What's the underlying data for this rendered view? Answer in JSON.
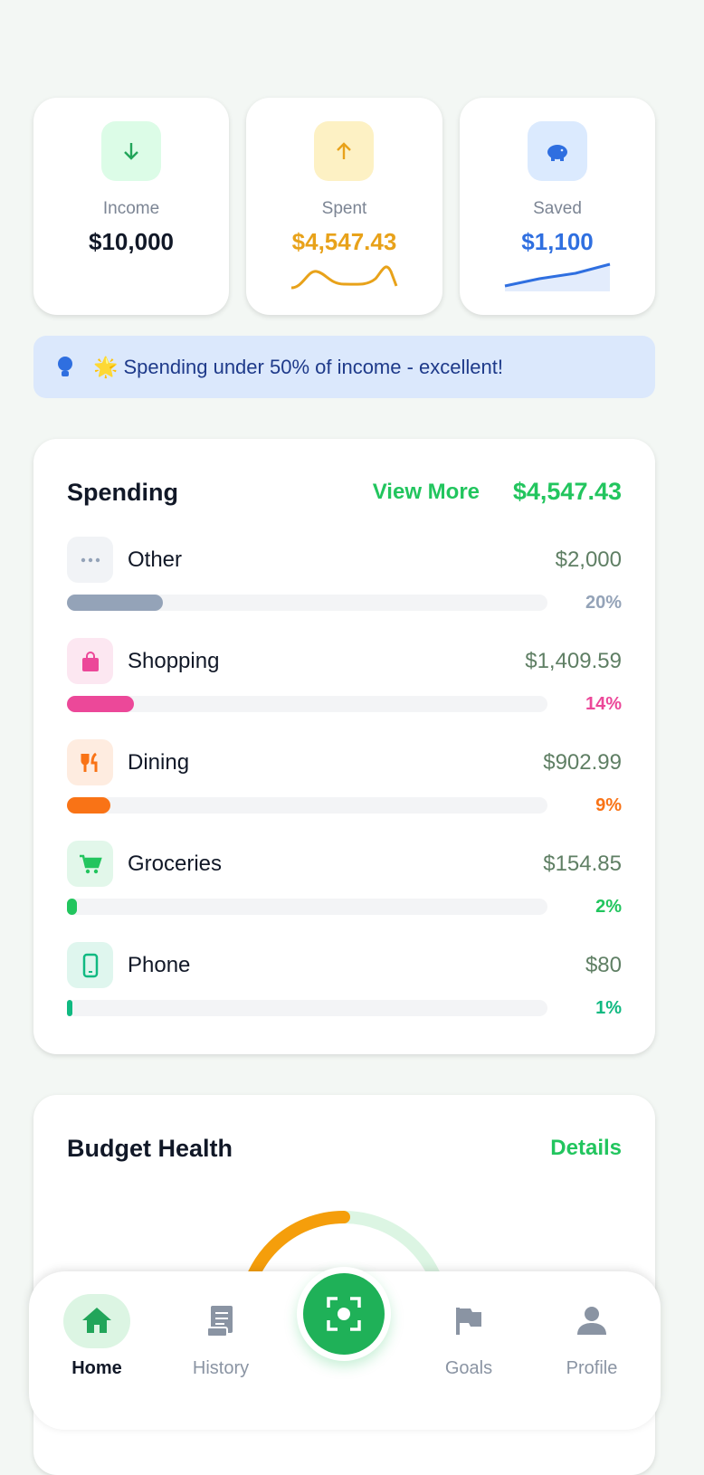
{
  "summary": [
    {
      "label": "Income",
      "amount": "$10,000"
    },
    {
      "label": "Spent",
      "amount": "$4,547.43"
    },
    {
      "label": "Saved",
      "amount": "$1,100"
    }
  ],
  "tip": "🌟 Spending under 50% of income - excellent!",
  "spending": {
    "title": "Spending",
    "link": "View More",
    "total": "$4,547.43",
    "categories": [
      {
        "name": "Other",
        "amount": "$2,000",
        "share": {
          "value": 20,
          "label": "20%"
        },
        "color": "#94a3b8"
      },
      {
        "name": "Shopping",
        "amount": "$1,409.59",
        "share": {
          "value": 14,
          "label": "14%"
        },
        "color": "#ec4899"
      },
      {
        "name": "Dining",
        "amount": "$902.99",
        "share": {
          "value": 9,
          "label": "9%"
        },
        "color": "#f97316"
      },
      {
        "name": "Groceries",
        "amount": "$154.85",
        "share": {
          "value": 2,
          "label": "2%"
        },
        "color": "#22c55e"
      },
      {
        "name": "Phone",
        "amount": "$80",
        "share": {
          "value": 1,
          "label": "1%"
        },
        "color": "#10b981"
      }
    ]
  },
  "budget_health": {
    "title": "Budget Health",
    "link": "Details"
  },
  "nav": [
    {
      "label": "Home"
    },
    {
      "label": "History"
    },
    {
      "label": "Goals"
    },
    {
      "label": "Profile"
    }
  ]
}
